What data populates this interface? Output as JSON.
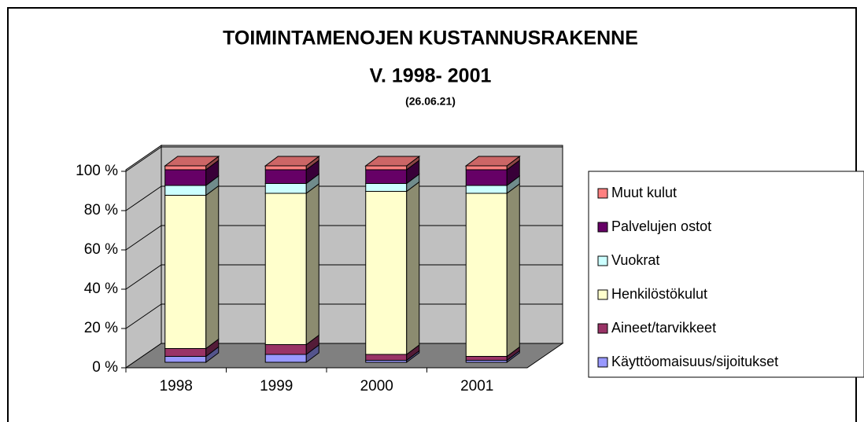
{
  "chart_data": {
    "type": "bar",
    "stacked": true,
    "title": "TOIMINTAMENOJEN KUSTANNUSRAKENNE",
    "subtitle": "V. 1998- 2001",
    "annotation": "(26.06.21)",
    "categories": [
      "1998",
      "1999",
      "2000",
      "2001"
    ],
    "series": [
      {
        "name": "Käyttöomaisuus/sijoitukset",
        "color": "#9999ff",
        "values": [
          3,
          4,
          1,
          1
        ]
      },
      {
        "name": "Aineet/tarvikkeet",
        "color": "#993366",
        "values": [
          4,
          5,
          3,
          2
        ]
      },
      {
        "name": "Henkilöstökulut",
        "color": "#ffffcc",
        "values": [
          78,
          77,
          83,
          83
        ]
      },
      {
        "name": "Vuokrat",
        "color": "#ccffff",
        "values": [
          5,
          5,
          4,
          4
        ]
      },
      {
        "name": "Palvelujen ostot",
        "color": "#660066",
        "values": [
          8,
          7,
          7,
          8
        ]
      },
      {
        "name": "Muut kulut",
        "color": "#ff8080",
        "values": [
          2,
          2,
          2,
          2
        ]
      }
    ],
    "ylim": [
      0,
      100
    ],
    "yticks": [
      {
        "value": 0,
        "label": "0 %"
      },
      {
        "value": 20,
        "label": "20 %"
      },
      {
        "value": 40,
        "label": "40 %"
      },
      {
        "value": 60,
        "label": "60 %"
      },
      {
        "value": 80,
        "label": "80 %"
      },
      {
        "value": 100,
        "label": "100 %"
      }
    ],
    "grid": true,
    "legend": "right"
  }
}
